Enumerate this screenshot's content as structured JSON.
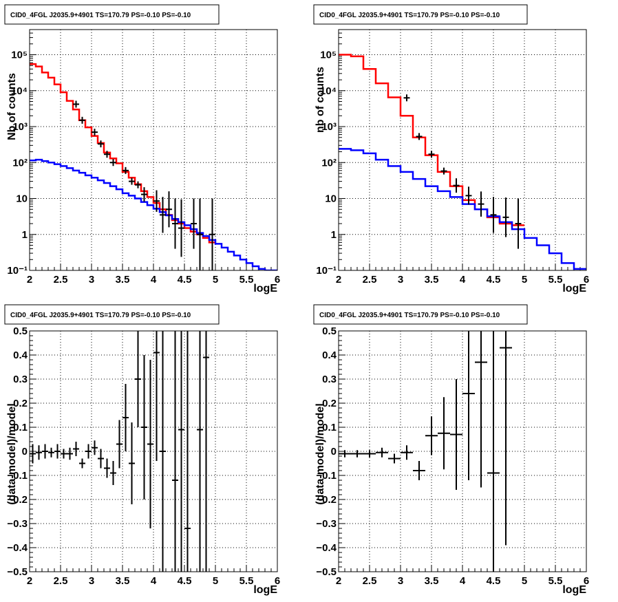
{
  "chart_data": [
    {
      "type": "line",
      "title": "CID0_4FGL J2035.9+4901 TS=170.79 PS=-0.10 PS=-0.10",
      "xlabel": "logE",
      "ylabel": "Nb of counts",
      "xlim": [
        2,
        6
      ],
      "ylim": [
        0.1,
        500000
      ],
      "log_y": true,
      "grid": true,
      "x_ticks": [
        "2",
        "2.5",
        "3",
        "3.5",
        "4",
        "4.5",
        "5",
        "5.5",
        "6"
      ],
      "y_ticks": [
        "10⁻¹",
        "1",
        "10",
        "10²",
        "10³",
        "10⁴",
        "10⁵"
      ],
      "series": [
        {
          "color": "#ff0000",
          "kind": "step",
          "bin_edges": [
            2.0,
            2.1,
            2.2,
            2.3,
            2.4,
            2.5,
            2.6,
            2.7,
            2.8,
            2.9,
            3.0,
            3.1,
            3.2,
            3.3,
            3.4,
            3.5,
            3.6,
            3.7,
            3.8,
            3.9,
            4.0,
            4.1,
            4.2,
            4.3,
            4.4,
            4.5,
            4.6,
            4.7,
            4.8,
            4.9,
            5.0
          ],
          "values": [
            55000,
            47000,
            32000,
            23000,
            15000,
            9000,
            5200,
            3000,
            1500,
            950,
            550,
            350,
            190,
            130,
            95,
            55,
            38,
            25,
            16,
            11,
            7.5,
            5,
            3.5,
            2.5,
            2,
            1.5,
            1.2,
            1,
            0.8,
            0.6
          ]
        },
        {
          "color": "#0000ff",
          "kind": "step",
          "bin_edges": [
            2.0,
            2.1,
            2.2,
            2.3,
            2.4,
            2.5,
            2.6,
            2.7,
            2.8,
            2.9,
            3.0,
            3.1,
            3.2,
            3.3,
            3.4,
            3.5,
            3.6,
            3.7,
            3.8,
            3.9,
            4.0,
            4.1,
            4.2,
            4.3,
            4.4,
            4.5,
            4.6,
            4.7,
            4.8,
            4.9,
            5.0,
            5.1,
            5.2,
            5.3,
            5.4,
            5.5,
            5.6,
            5.7,
            5.8,
            5.9,
            6.0
          ],
          "values": [
            115,
            120,
            110,
            100,
            90,
            80,
            70,
            60,
            52,
            44,
            38,
            32,
            27,
            22,
            18,
            14,
            12,
            10,
            8,
            6.5,
            5.2,
            4.2,
            3.4,
            2.7,
            2.2,
            1.8,
            1.4,
            1.1,
            0.9,
            0.7,
            0.55,
            0.43,
            0.33,
            0.26,
            0.2,
            0.16,
            0.13,
            0.11,
            0.1,
            0.1
          ]
        },
        {
          "color": "#000000",
          "kind": "points",
          "points": [
            [
              2.75,
              4200,
              0
            ],
            [
              2.85,
              1500,
              0
            ],
            [
              3.05,
              700,
              0
            ],
            [
              3.15,
              330,
              0
            ],
            [
              3.25,
              170,
              0
            ],
            [
              3.35,
              100,
              0
            ],
            [
              3.55,
              60,
              0
            ],
            [
              3.65,
              30,
              0
            ],
            [
              3.75,
              24,
              0
            ],
            [
              3.85,
              13,
              0.2
            ],
            [
              4.05,
              8.5,
              0.3
            ],
            [
              4.15,
              3.5,
              0.5
            ],
            [
              4.25,
              5,
              0.5
            ],
            [
              4.35,
              2,
              0.7
            ],
            [
              4.45,
              1.5,
              0.8
            ],
            [
              4.65,
              2,
              0.7
            ],
            [
              4.75,
              1,
              1
            ],
            [
              4.95,
              1,
              1
            ]
          ]
        }
      ]
    },
    {
      "type": "line",
      "title": "CID0_4FGL J2035.9+4901 TS=170.79 PS=-0.10 PS=-0.10",
      "xlabel": "logE",
      "ylabel": "nb of counts",
      "xlim": [
        2,
        6
      ],
      "ylim": [
        0.1,
        500000
      ],
      "log_y": true,
      "grid": true,
      "x_ticks": [
        "2",
        "2.5",
        "3",
        "3.5",
        "4",
        "4.5",
        "5",
        "5.5",
        "6"
      ],
      "y_ticks": [
        "10⁻¹",
        "1",
        "10",
        "10²",
        "10³",
        "10⁴",
        "10⁵"
      ],
      "series": [
        {
          "color": "#ff0000",
          "kind": "step",
          "bin_edges": [
            2.0,
            2.2,
            2.4,
            2.6,
            2.8,
            3.0,
            3.2,
            3.4,
            3.6,
            3.8,
            4.0,
            4.2,
            4.4,
            4.6,
            4.8,
            5.0
          ],
          "values": [
            100000,
            90000,
            40000,
            16000,
            6500,
            2000,
            500,
            160,
            55,
            22,
            9,
            5,
            3,
            2,
            1.8
          ]
        },
        {
          "color": "#0000ff",
          "kind": "step",
          "bin_edges": [
            2.0,
            2.2,
            2.4,
            2.6,
            2.8,
            3.0,
            3.2,
            3.4,
            3.6,
            3.8,
            4.0,
            4.2,
            4.4,
            4.6,
            4.8,
            5.0,
            5.2,
            5.4,
            5.6,
            5.8,
            6.0
          ],
          "values": [
            240,
            220,
            180,
            120,
            80,
            55,
            35,
            22,
            16,
            11,
            7,
            5,
            3.2,
            2.2,
            1.4,
            0.8,
            0.5,
            0.3,
            0.16,
            0.11
          ]
        },
        {
          "color": "#000000",
          "kind": "points",
          "points": [
            [
              3.1,
              6300,
              0
            ],
            [
              3.3,
              530,
              0
            ],
            [
              3.5,
              170,
              0
            ],
            [
              3.7,
              58,
              0
            ],
            [
              3.9,
              23,
              0.2
            ],
            [
              4.1,
              12,
              0.25
            ],
            [
              4.3,
              7,
              0.35
            ],
            [
              4.5,
              3.5,
              0.5
            ],
            [
              4.7,
              3,
              0.55
            ],
            [
              4.9,
              2,
              0.7
            ]
          ]
        }
      ]
    },
    {
      "type": "scatter",
      "title": "CID0_4FGL J2035.9+4901 TS=170.79 PS=-0.10 PS=-0.10",
      "xlabel": "logE",
      "ylabel": "(data-model)/model",
      "xlim": [
        2,
        6
      ],
      "ylim": [
        -0.5,
        0.5
      ],
      "grid": true,
      "x_ticks": [
        "2",
        "2.5",
        "3",
        "3.5",
        "4",
        "4.5",
        "5",
        "5.5",
        "6"
      ],
      "y_ticks": [
        "−0.5",
        "−0.4",
        "−0.3",
        "−0.2",
        "−0.1",
        "0",
        "0.1",
        "0.2",
        "0.3",
        "0.4",
        "0.5"
      ],
      "series": [
        {
          "color": "#000000",
          "x_halfwidth": 0.05,
          "points": [
            [
              2.05,
              -0.01,
              0.04
            ],
            [
              2.15,
              -0.005,
              0.03
            ],
            [
              2.25,
              0.0,
              0.03
            ],
            [
              2.35,
              -0.005,
              0.02
            ],
            [
              2.45,
              0.0,
              0.03
            ],
            [
              2.55,
              -0.01,
              0.02
            ],
            [
              2.65,
              -0.01,
              0.025
            ],
            [
              2.75,
              0.01,
              0.03
            ],
            [
              2.85,
              -0.05,
              0.02
            ],
            [
              2.95,
              0.0,
              0.03
            ],
            [
              3.05,
              0.015,
              0.03
            ],
            [
              3.15,
              -0.03,
              0.04
            ],
            [
              3.25,
              -0.07,
              0.04
            ],
            [
              3.35,
              -0.09,
              0.05
            ],
            [
              3.45,
              0.03,
              0.1
            ],
            [
              3.55,
              0.14,
              0.14
            ],
            [
              3.65,
              -0.05,
              0.17
            ],
            [
              3.75,
              0.3,
              0.2
            ],
            [
              3.85,
              0.1,
              0.3
            ],
            [
              3.95,
              0.03,
              0.35
            ],
            [
              4.05,
              0.41,
              0.45
            ],
            [
              4.15,
              0.0,
              0.55
            ],
            [
              4.35,
              -0.12,
              0.65
            ],
            [
              4.45,
              0.09,
              0.8
            ],
            [
              4.55,
              -0.32,
              0.9
            ],
            [
              4.75,
              0.09,
              1.0
            ],
            [
              4.85,
              0.39,
              1.1
            ]
          ]
        }
      ]
    },
    {
      "type": "scatter",
      "title": "CID0_4FGL J2035.9+4901 TS=170.79 PS=-0.10 PS=-0.10",
      "xlabel": "logE",
      "ylabel": "(data-model)/model",
      "xlim": [
        2,
        6
      ],
      "ylim": [
        -0.5,
        0.5
      ],
      "grid": true,
      "x_ticks": [
        "2",
        "2.5",
        "3",
        "3.5",
        "4",
        "4.5",
        "5",
        "5.5",
        "6"
      ],
      "y_ticks": [
        "−0.5",
        "−0.4",
        "−0.3",
        "−0.2",
        "−0.1",
        "0",
        "0.1",
        "0.2",
        "0.3",
        "0.4",
        "0.5"
      ],
      "series": [
        {
          "color": "#000000",
          "x_halfwidth": 0.1,
          "points": [
            [
              2.1,
              -0.01,
              0.015
            ],
            [
              2.3,
              -0.01,
              0.015
            ],
            [
              2.5,
              -0.01,
              0.015
            ],
            [
              2.7,
              -0.005,
              0.02
            ],
            [
              2.9,
              -0.03,
              0.02
            ],
            [
              3.1,
              -0.005,
              0.03
            ],
            [
              3.3,
              -0.08,
              0.04
            ],
            [
              3.5,
              0.065,
              0.08
            ],
            [
              3.7,
              0.075,
              0.15
            ],
            [
              3.9,
              0.07,
              0.23
            ],
            [
              4.1,
              0.24,
              0.36
            ],
            [
              4.3,
              0.37,
              0.52
            ],
            [
              4.5,
              -0.09,
              0.6
            ],
            [
              4.7,
              0.43,
              0.82
            ]
          ]
        }
      ]
    }
  ]
}
